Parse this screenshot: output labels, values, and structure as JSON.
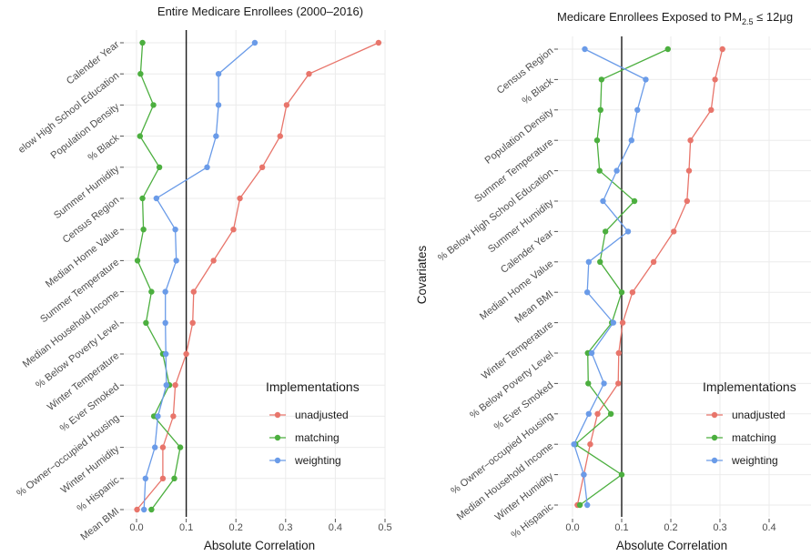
{
  "axis_label_y": "Covariates",
  "legend": {
    "title": "Implementations",
    "entries": [
      "unadjusted",
      "matching",
      "weighting"
    ]
  },
  "colors": {
    "unadjusted": "#e8756b",
    "matching": "#4caf3f",
    "weighting": "#6a9be8",
    "reference_line": "#1a1a1a"
  },
  "chart_data": [
    {
      "type": "scatter",
      "title": "Entire Medicare Enrollees (2000–2016)",
      "xlabel": "Absolute Correlation",
      "ylabel": "",
      "xlim": [
        -0.02,
        0.5
      ],
      "xticks": [
        0.0,
        0.1,
        0.2,
        0.3,
        0.4,
        0.5
      ],
      "xtick_labels": [
        "0.0",
        "0.1",
        "0.2",
        "0.3",
        "0.4",
        "0.5"
      ],
      "reference_x": 0.1,
      "grid": true,
      "categories": [
        "Calender Year",
        "% Below High School Education",
        "Population Density",
        "% Black",
        "Summer Humidity",
        "Census Region",
        "Median Home Value",
        "Summer Temperature",
        "Median Household Income",
        "% Below Poverty Level",
        "Winter Temperature",
        "% Ever Smoked",
        "% Owner-occupied Housing",
        "Winter Humidity",
        "% Hispanic",
        "Mean BMI"
      ],
      "category_labels": [
        "Calender Year",
        "elow High School Education",
        "Population Density",
        "% Black",
        "Summer Humidity",
        "Census Region",
        "Median Home Value",
        "Summer Temperature",
        "Median Household Income",
        "% Below Poverty Level",
        "Winter Temperature",
        "% Ever Smoked",
        "% Owner−occupied Housing",
        "Winter Humidity",
        "% Hispanic",
        "Mean BMI"
      ],
      "series": [
        {
          "name": "unadjusted",
          "values": [
            0.487,
            0.347,
            0.302,
            0.289,
            0.253,
            0.208,
            0.195,
            0.155,
            0.115,
            0.113,
            0.1,
            0.078,
            0.074,
            0.053,
            0.053,
            0.001
          ]
        },
        {
          "name": "matching",
          "values": [
            0.012,
            0.008,
            0.034,
            0.007,
            0.046,
            0.012,
            0.014,
            0.002,
            0.03,
            0.019,
            0.053,
            0.066,
            0.035,
            0.088,
            0.076,
            0.03
          ]
        },
        {
          "name": "weighting",
          "values": [
            0.238,
            0.165,
            0.165,
            0.16,
            0.142,
            0.04,
            0.078,
            0.08,
            0.058,
            0.058,
            0.059,
            0.06,
            0.043,
            0.037,
            0.018,
            0.015
          ]
        }
      ]
    },
    {
      "type": "scatter",
      "title": "Medicare Enrollees Exposed to PM",
      "title_sub": "2.5",
      "title_tail": " ≤ 12μg",
      "xlabel": "Absolute Correlation",
      "ylabel": "Covariates",
      "xlim": [
        -0.02,
        0.5
      ],
      "xticks": [
        0.0,
        0.1,
        0.2,
        0.3,
        0.4
      ],
      "xtick_labels": [
        "0.0",
        "0.1",
        "0.2",
        "0.3",
        "0.4"
      ],
      "reference_x": 0.1,
      "grid": true,
      "categories": [
        "Census Region",
        "% Black",
        "Population Density",
        "Summer Temperature",
        "% Below High School Education",
        "Summer Humidity",
        "Calender Year",
        "Median Home Value",
        "Mean BMI",
        "Winter Temperature",
        "% Below Poverty Level",
        "% Ever Smoked",
        "% Owner-occupied Housing",
        "Median Household Income",
        "Winter Humidity",
        "% Hispanic"
      ],
      "category_labels": [
        "Census Region",
        "% Black",
        "Population Density",
        "Summer Temperature",
        "% Below High School Education",
        "Summer Humidity",
        "Calender Year",
        "Median Home Value",
        "Mean BMI",
        "Winter Temperature",
        "% Below Poverty Level",
        "% Ever Smoked",
        "% Owner−occupied Housing",
        "Median Household Income",
        "Winter Humidity",
        "% Hispanic"
      ],
      "series": [
        {
          "name": "unadjusted",
          "values": [
            0.305,
            0.29,
            0.282,
            0.24,
            0.237,
            0.233,
            0.206,
            0.165,
            0.122,
            0.102,
            0.094,
            0.093,
            0.051,
            0.036,
            0.023,
            0.01
          ]
        },
        {
          "name": "matching",
          "values": [
            0.194,
            0.059,
            0.057,
            0.05,
            0.055,
            0.126,
            0.067,
            0.056,
            0.1,
            0.08,
            0.031,
            0.032,
            0.078,
            0.006,
            0.1,
            0.015
          ]
        },
        {
          "name": "weighting",
          "values": [
            0.025,
            0.149,
            0.132,
            0.12,
            0.09,
            0.062,
            0.113,
            0.033,
            0.03,
            0.083,
            0.039,
            0.064,
            0.033,
            0.003,
            0.023,
            0.03
          ]
        }
      ]
    }
  ]
}
